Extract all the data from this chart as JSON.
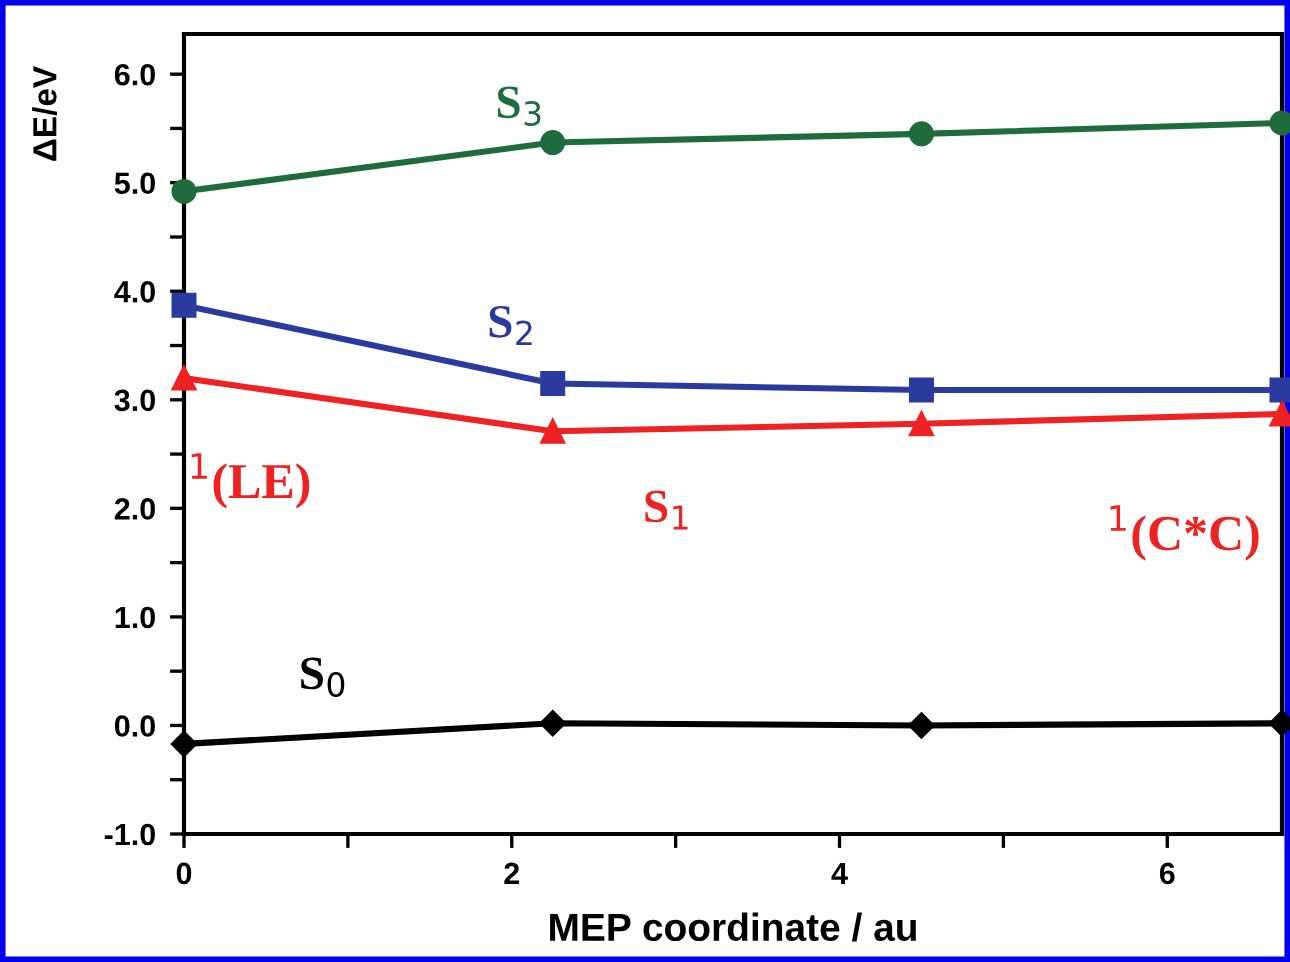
{
  "chart_data": {
    "type": "line",
    "xlabel": "MEP coordinate / au",
    "ylabel": "ΔE/eV",
    "x": [
      0,
      2.25,
      4.5,
      6.7
    ],
    "series": [
      {
        "name": "S$_{3}$",
        "color": "#1e6b3c",
        "marker": "circle",
        "values": [
          4.92,
          5.37,
          5.45,
          5.55
        ]
      },
      {
        "name": "S$_{2}$",
        "color": "#2b3a9e",
        "marker": "square",
        "values": [
          3.87,
          3.15,
          3.09,
          3.09
        ]
      },
      {
        "name": "S$_{1}$",
        "color": "#ee2222",
        "marker": "triangle",
        "values": [
          3.2,
          2.71,
          2.78,
          2.87
        ]
      },
      {
        "name": "S$_{0}$",
        "color": "#000000",
        "marker": "diamond",
        "values": [
          -0.17,
          0.02,
          0,
          0.02
        ]
      }
    ],
    "annotations": [
      {
        "text": "$^{1}$(LE)",
        "x": 0,
        "y": 3.2
      },
      {
        "text": "$^{1}$(C*C)",
        "x": 6.7,
        "y": 2.87
      }
    ],
    "xlim": [
      0,
      6.7
    ],
    "ylim": [
      -1.0,
      6.37
    ],
    "xticks": [
      0,
      {
        "value": 1,
        "label": null
      },
      2,
      {
        "value": 3,
        "label": null
      },
      4,
      {
        "value": 5,
        "label": null
      },
      6
    ],
    "yticks": [
      {
        "value": -1.0,
        "label": "-1.0"
      },
      {
        "value": -0.5,
        "label": null
      },
      {
        "value": 0.0,
        "label": "0.0"
      },
      {
        "value": 0.5,
        "label": null
      },
      {
        "value": 1.0,
        "label": "1.0"
      },
      {
        "value": 1.5,
        "label": null
      },
      {
        "value": 2.0,
        "label": "2.0"
      },
      {
        "value": 2.5,
        "label": null
      },
      {
        "value": 3.0,
        "label": "3.0"
      },
      {
        "value": 3.5,
        "label": null
      },
      {
        "value": 4.0,
        "label": "4.0"
      },
      {
        "value": 4.5,
        "label": null
      },
      {
        "value": 5.0,
        "label": "5.0"
      },
      {
        "value": 5.5,
        "label": null
      },
      {
        "value": 6.0,
        "label": "6.0"
      }
    ],
    "grid": false,
    "legend": false,
    "line_style": "solid"
  }
}
